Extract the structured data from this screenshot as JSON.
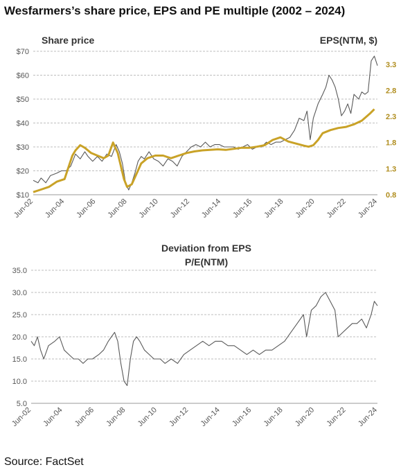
{
  "title": "Wesfarmers’s share price, EPS and PE multiple (2002 – 2024)",
  "source": "Source: FactSet",
  "colors": {
    "price": "#595959",
    "eps": "#c9a227",
    "pe": "#595959",
    "grid": "#bdbdbd",
    "eps_text": "#b08d1e"
  },
  "chart_data": [
    {
      "type": "line",
      "left_axis_label": "Share price",
      "right_axis_label": "EPS(NTM, $)",
      "x_ticks": [
        "Jun-02",
        "Jun-04",
        "Jun-06",
        "Jun-08",
        "Jun-10",
        "Jun-12",
        "Jun-14",
        "Jun-16",
        "Jun-18",
        "Jun-20",
        "Jun-22",
        "Jun-24"
      ],
      "y_ticks_left": [
        "$70",
        "$60",
        "$50",
        "$40",
        "$30",
        "$20",
        "$10"
      ],
      "y_ticks_right": [
        "3.3",
        "2.8",
        "2.3",
        "1.8",
        "1.3",
        "0.8"
      ],
      "ylim_left": [
        10,
        70
      ],
      "ylim_right": [
        0.8,
        3.55
      ],
      "xlim": [
        2002.5,
        2024.5
      ],
      "grid": true,
      "series": [
        {
          "name": "Share price",
          "axis": "left",
          "x": [
            2002.5,
            2002.8,
            2003.0,
            2003.3,
            2003.6,
            2004.0,
            2004.3,
            2004.6,
            2004.9,
            2005.2,
            2005.5,
            2005.8,
            2006.0,
            2006.3,
            2006.6,
            2006.9,
            2007.2,
            2007.5,
            2007.8,
            2008.0,
            2008.2,
            2008.4,
            2008.6,
            2008.8,
            2009.0,
            2009.2,
            2009.4,
            2009.6,
            2009.9,
            2010.2,
            2010.5,
            2010.8,
            2011.1,
            2011.4,
            2011.7,
            2012.0,
            2012.3,
            2012.6,
            2012.9,
            2013.2,
            2013.5,
            2013.8,
            2014.1,
            2014.4,
            2014.7,
            2015.0,
            2015.3,
            2015.6,
            2015.9,
            2016.2,
            2016.5,
            2016.8,
            2017.1,
            2017.4,
            2017.7,
            2018.0,
            2018.3,
            2018.6,
            2018.9,
            2019.2,
            2019.5,
            2019.8,
            2020.0,
            2020.2,
            2020.4,
            2020.7,
            2021.0,
            2021.2,
            2021.4,
            2021.6,
            2021.8,
            2022.0,
            2022.2,
            2022.4,
            2022.6,
            2022.8,
            2023.0,
            2023.3,
            2023.5,
            2023.7,
            2023.9,
            2024.1,
            2024.3,
            2024.5
          ],
          "values": [
            16,
            15,
            17,
            15,
            18,
            19,
            20,
            20,
            22,
            27,
            25,
            28,
            26,
            24,
            26,
            24,
            27,
            26,
            31,
            28,
            23,
            15,
            12,
            15,
            19,
            24,
            26,
            25,
            28,
            25,
            24,
            22,
            25,
            24,
            22,
            26,
            28,
            30,
            31,
            30,
            32,
            30,
            31,
            31,
            30,
            30,
            30,
            29,
            30,
            31,
            29,
            30,
            30,
            32,
            31,
            32,
            32,
            33,
            34,
            37,
            42,
            41,
            45,
            33,
            42,
            48,
            52,
            55,
            60,
            58,
            55,
            50,
            43,
            45,
            48,
            44,
            52,
            50,
            53,
            52,
            53,
            66,
            68,
            64
          ]
        },
        {
          "name": "EPS(NTM, $)",
          "axis": "right",
          "x": [
            2002.5,
            2003.0,
            2003.5,
            2004.0,
            2004.5,
            2005.0,
            2005.2,
            2005.5,
            2005.8,
            2006.2,
            2006.6,
            2007.0,
            2007.3,
            2007.6,
            2007.9,
            2008.1,
            2008.3,
            2008.5,
            2008.8,
            2009.1,
            2009.4,
            2009.8,
            2010.3,
            2010.8,
            2011.3,
            2011.8,
            2012.3,
            2012.8,
            2013.3,
            2013.8,
            2014.3,
            2014.8,
            2015.3,
            2015.8,
            2016.3,
            2016.8,
            2017.3,
            2017.8,
            2018.3,
            2018.8,
            2019.3,
            2019.8,
            2020.1,
            2020.4,
            2020.7,
            2021.0,
            2021.5,
            2022.0,
            2022.5,
            2023.0,
            2023.5,
            2024.0,
            2024.3
          ],
          "values": [
            0.85,
            0.9,
            0.95,
            1.05,
            1.1,
            1.55,
            1.65,
            1.75,
            1.7,
            1.6,
            1.55,
            1.5,
            1.55,
            1.8,
            1.6,
            1.35,
            1.1,
            0.95,
            1.0,
            1.2,
            1.4,
            1.5,
            1.55,
            1.55,
            1.5,
            1.55,
            1.6,
            1.63,
            1.65,
            1.66,
            1.67,
            1.66,
            1.68,
            1.7,
            1.7,
            1.72,
            1.75,
            1.85,
            1.9,
            1.82,
            1.78,
            1.74,
            1.72,
            1.75,
            1.85,
            1.98,
            2.04,
            2.08,
            2.1,
            2.15,
            2.22,
            2.35,
            2.44
          ]
        }
      ]
    },
    {
      "type": "line",
      "title": "Deviation from EPS",
      "subtitle": "P/E(NTM)",
      "x_ticks": [
        "Jun-02",
        "Jun-04",
        "Jun-06",
        "Jun-08",
        "Jun-10",
        "Jun-12",
        "Jun-14",
        "Jun-16",
        "Jun-18",
        "Jun-20",
        "Jun-22",
        "Jun-24"
      ],
      "y_ticks": [
        "35.0",
        "30.0",
        "25.0",
        "20.0",
        "15.0",
        "10.0",
        "5.0"
      ],
      "ylim": [
        5,
        35
      ],
      "xlim": [
        2002.5,
        2024.5
      ],
      "grid": true,
      "series": [
        {
          "name": "P/E(NTM)",
          "x": [
            2002.5,
            2002.7,
            2002.9,
            2003.1,
            2003.3,
            2003.6,
            2004.0,
            2004.3,
            2004.6,
            2004.9,
            2005.2,
            2005.5,
            2005.8,
            2006.1,
            2006.4,
            2006.8,
            2007.1,
            2007.4,
            2007.6,
            2007.8,
            2008.0,
            2008.2,
            2008.4,
            2008.6,
            2008.8,
            2009.0,
            2009.2,
            2009.4,
            2009.7,
            2010.0,
            2010.3,
            2010.7,
            2011.0,
            2011.4,
            2011.8,
            2012.2,
            2012.6,
            2013.0,
            2013.4,
            2013.8,
            2014.2,
            2014.6,
            2015.0,
            2015.4,
            2015.8,
            2016.2,
            2016.6,
            2017.0,
            2017.4,
            2017.8,
            2018.2,
            2018.6,
            2019.0,
            2019.4,
            2019.8,
            2020.0,
            2020.3,
            2020.6,
            2020.9,
            2021.2,
            2021.5,
            2021.8,
            2022.0,
            2022.3,
            2022.6,
            2022.9,
            2023.2,
            2023.5,
            2023.8,
            2024.1,
            2024.3,
            2024.5
          ],
          "values": [
            19,
            18,
            20,
            17,
            15,
            18,
            19,
            20,
            17,
            16,
            15,
            15,
            14,
            15,
            15,
            16,
            17,
            19,
            20,
            21,
            19,
            14,
            10,
            9,
            15,
            19,
            20,
            19,
            17,
            16,
            15,
            15,
            14,
            15,
            14,
            16,
            17,
            18,
            19,
            18,
            19,
            19,
            18,
            18,
            17,
            16,
            17,
            16,
            17,
            17,
            18,
            19,
            21,
            23,
            25,
            20,
            26,
            27,
            29,
            30,
            28,
            26,
            20,
            21,
            22,
            23,
            23,
            24,
            22,
            25,
            28,
            27
          ]
        }
      ]
    }
  ]
}
